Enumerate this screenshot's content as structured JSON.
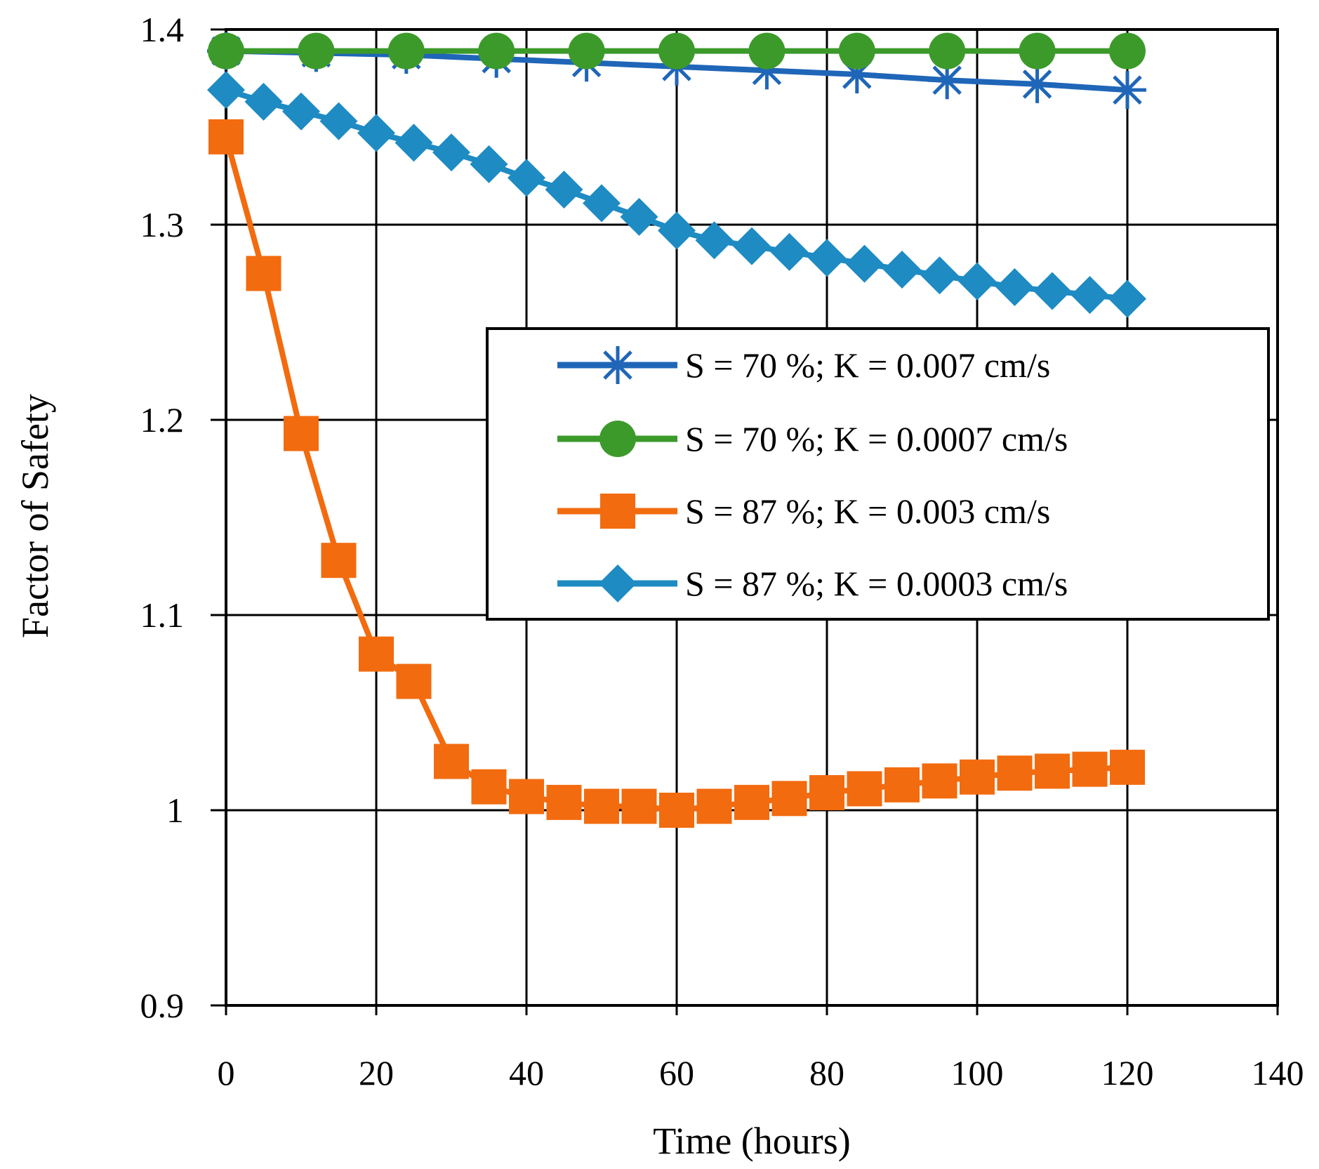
{
  "chart_data": {
    "type": "line",
    "title": "",
    "xlabel": "Time (hours)",
    "ylabel": "Factor of Safety",
    "xlim": [
      0,
      140
    ],
    "ylim": [
      0.9,
      1.4
    ],
    "x_ticks": [
      0,
      20,
      40,
      60,
      80,
      100,
      120,
      140
    ],
    "x_tick_labels": [
      "0",
      "20",
      "40",
      "60",
      "80",
      "100",
      "120",
      "140"
    ],
    "y_ticks": [
      0.9,
      1.0,
      1.1,
      1.2,
      1.3,
      1.4
    ],
    "y_tick_labels": [
      "0.9",
      "1",
      "1.1",
      "1.2",
      "1.3",
      "1.4"
    ],
    "grid": true,
    "legend_position": "center-right",
    "series": [
      {
        "name": "S = 70 %; K = 0.007 cm/s",
        "color": "#1F66B8",
        "marker": "asterisk",
        "x": [
          0,
          12,
          24,
          36,
          48,
          60,
          72,
          84,
          96,
          108,
          120
        ],
        "y": [
          1.389,
          1.388,
          1.387,
          1.385,
          1.383,
          1.381,
          1.379,
          1.377,
          1.374,
          1.372,
          1.369
        ]
      },
      {
        "name": "S = 70 %; K = 0.0007 cm/s",
        "color": "#3C9A2B",
        "marker": "circle",
        "x": [
          0,
          12,
          24,
          36,
          48,
          60,
          72,
          84,
          96,
          108,
          120
        ],
        "y": [
          1.389,
          1.389,
          1.389,
          1.389,
          1.389,
          1.389,
          1.389,
          1.389,
          1.389,
          1.389,
          1.389
        ]
      },
      {
        "name": "S = 87 %; K = 0.003 cm/s",
        "color": "#F26B0F",
        "marker": "square",
        "x": [
          0,
          5,
          10,
          15,
          20,
          25,
          30,
          35,
          40,
          45,
          50,
          55,
          60,
          65,
          70,
          75,
          80,
          85,
          90,
          95,
          100,
          105,
          110,
          115,
          120
        ],
        "y": [
          1.345,
          1.275,
          1.193,
          1.128,
          1.08,
          1.066,
          1.025,
          1.012,
          1.007,
          1.004,
          1.002,
          1.002,
          1.0,
          1.002,
          1.004,
          1.006,
          1.009,
          1.011,
          1.013,
          1.015,
          1.017,
          1.019,
          1.02,
          1.021,
          1.022
        ]
      },
      {
        "name": "S = 87 %; K = 0.0003 cm/s",
        "color": "#1E8BC3",
        "marker": "diamond",
        "x": [
          0,
          5,
          10,
          15,
          20,
          25,
          30,
          35,
          40,
          45,
          50,
          55,
          60,
          65,
          70,
          75,
          80,
          85,
          90,
          95,
          100,
          105,
          110,
          115,
          120
        ],
        "y": [
          1.369,
          1.363,
          1.358,
          1.353,
          1.347,
          1.342,
          1.337,
          1.331,
          1.324,
          1.318,
          1.311,
          1.304,
          1.297,
          1.292,
          1.289,
          1.286,
          1.283,
          1.28,
          1.277,
          1.274,
          1.271,
          1.268,
          1.266,
          1.264,
          1.262
        ]
      }
    ]
  }
}
